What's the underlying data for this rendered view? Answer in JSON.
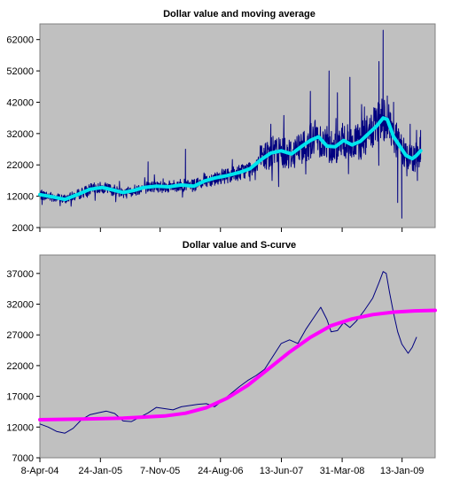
{
  "chart_data": [
    {
      "type": "line",
      "title": "Dollar value and moving average",
      "xlabel": "",
      "ylabel": "",
      "ylim": [
        2000,
        67000
      ],
      "yticks": [
        2000,
        12000,
        22000,
        32000,
        42000,
        52000,
        62000
      ],
      "xlim_days": [
        0,
        1900
      ],
      "grid": false,
      "legend": "none",
      "background": "#c0c0c0",
      "series": [
        {
          "role": "daily dollar value",
          "color": "#000080",
          "noisy": true,
          "points": [
            [
              0,
              12500
            ],
            [
              60,
              11800
            ],
            [
              120,
              11000
            ],
            [
              180,
              12500
            ],
            [
              240,
              14200
            ],
            [
              300,
              14800
            ],
            [
              350,
              14000
            ],
            [
              400,
              13200
            ],
            [
              450,
              13800
            ],
            [
              500,
              14800
            ],
            [
              560,
              15200
            ],
            [
              620,
              15000
            ],
            [
              680,
              15600
            ],
            [
              740,
              15200
            ],
            [
              790,
              16800
            ],
            [
              840,
              17800
            ],
            [
              900,
              18600
            ],
            [
              960,
              19600
            ],
            [
              1010,
              20800
            ],
            [
              1060,
              23500
            ],
            [
              1110,
              25800
            ],
            [
              1160,
              26500
            ],
            [
              1210,
              25500
            ],
            [
              1260,
              28000
            ],
            [
              1300,
              29800
            ],
            [
              1340,
              31000
            ],
            [
              1380,
              28000
            ],
            [
              1420,
              27800
            ],
            [
              1460,
              29800
            ],
            [
              1500,
              28400
            ],
            [
              1540,
              29500
            ],
            [
              1580,
              32000
            ],
            [
              1620,
              34500
            ],
            [
              1650,
              37000
            ],
            [
              1670,
              36500
            ],
            [
              1700,
              31000
            ],
            [
              1730,
              28000
            ],
            [
              1760,
              25000
            ],
            [
              1790,
              24000
            ],
            [
              1810,
              25000
            ],
            [
              1830,
              26500
            ]
          ],
          "spikes": [
            [
              520,
              23000
            ],
            [
              700,
              27000
            ],
            [
              1110,
              35000
            ],
            [
              1300,
              45500
            ],
            [
              1390,
              52000
            ],
            [
              1430,
              45000
            ],
            [
              1490,
              50000
            ],
            [
              1560,
              40500
            ],
            [
              1630,
              55000
            ],
            [
              1650,
              65000
            ],
            [
              1670,
              44000
            ],
            [
              1700,
              42000
            ],
            [
              1720,
              10000
            ],
            [
              1740,
              5000
            ],
            [
              1780,
              35000
            ],
            [
              1815,
              17000
            ],
            [
              1830,
              33000
            ]
          ]
        },
        {
          "role": "moving average",
          "color": "#00e5ee",
          "points": [
            [
              0,
              12500
            ],
            [
              60,
              11800
            ],
            [
              120,
              11000
            ],
            [
              180,
              12500
            ],
            [
              240,
              14200
            ],
            [
              300,
              14800
            ],
            [
              350,
              14000
            ],
            [
              400,
              13200
            ],
            [
              450,
              13800
            ],
            [
              500,
              14800
            ],
            [
              560,
              15200
            ],
            [
              620,
              15000
            ],
            [
              680,
              15600
            ],
            [
              740,
              15200
            ],
            [
              790,
              16800
            ],
            [
              840,
              17800
            ],
            [
              900,
              18600
            ],
            [
              960,
              19600
            ],
            [
              1010,
              20800
            ],
            [
              1060,
              23500
            ],
            [
              1110,
              25800
            ],
            [
              1160,
              26500
            ],
            [
              1210,
              25500
            ],
            [
              1260,
              28000
            ],
            [
              1300,
              29800
            ],
            [
              1340,
              31000
            ],
            [
              1380,
              28000
            ],
            [
              1420,
              27800
            ],
            [
              1460,
              29800
            ],
            [
              1500,
              28400
            ],
            [
              1540,
              29500
            ],
            [
              1580,
              32000
            ],
            [
              1620,
              34500
            ],
            [
              1650,
              37000
            ],
            [
              1670,
              36500
            ],
            [
              1700,
              31000
            ],
            [
              1730,
              28000
            ],
            [
              1760,
              25000
            ],
            [
              1790,
              24000
            ],
            [
              1810,
              25000
            ],
            [
              1830,
              26500
            ]
          ]
        }
      ]
    },
    {
      "type": "line",
      "title": "Dollar value and S-curve",
      "xlabel": "",
      "ylabel": "",
      "ylim": [
        7000,
        40000
      ],
      "yticks": [
        7000,
        12000,
        17000,
        22000,
        27000,
        32000,
        37000
      ],
      "xlim_days": [
        0,
        1900
      ],
      "xticks": [
        {
          "day": 0,
          "label": "8-Apr-04"
        },
        {
          "day": 291,
          "label": "24-Jan-05"
        },
        {
          "day": 578,
          "label": "7-Nov-05"
        },
        {
          "day": 868,
          "label": "24-Aug-06"
        },
        {
          "day": 1161,
          "label": "13-Jun-07"
        },
        {
          "day": 1453,
          "label": "31-Mar-08"
        },
        {
          "day": 1741,
          "label": "13-Jan-09"
        }
      ],
      "grid": false,
      "legend": "none",
      "background": "#c0c0c0",
      "series": [
        {
          "role": "smoothed dollar value",
          "color": "#000080",
          "points": [
            [
              0,
              12500
            ],
            [
              40,
              12000
            ],
            [
              80,
              11300
            ],
            [
              120,
              11000
            ],
            [
              160,
              11800
            ],
            [
              200,
              13200
            ],
            [
              240,
              14000
            ],
            [
              280,
              14300
            ],
            [
              320,
              14600
            ],
            [
              360,
              14200
            ],
            [
              400,
              13000
            ],
            [
              440,
              12900
            ],
            [
              480,
              13600
            ],
            [
              520,
              14300
            ],
            [
              560,
              15200
            ],
            [
              600,
              15000
            ],
            [
              640,
              14800
            ],
            [
              680,
              15300
            ],
            [
              720,
              15500
            ],
            [
              760,
              15700
            ],
            [
              800,
              15800
            ],
            [
              840,
              15300
            ],
            [
              880,
              16400
            ],
            [
              920,
              17500
            ],
            [
              960,
              18600
            ],
            [
              1000,
              19600
            ],
            [
              1040,
              20400
            ],
            [
              1080,
              21400
            ],
            [
              1120,
              23500
            ],
            [
              1160,
              25600
            ],
            [
              1200,
              26200
            ],
            [
              1240,
              25600
            ],
            [
              1280,
              28000
            ],
            [
              1320,
              30000
            ],
            [
              1350,
              31500
            ],
            [
              1380,
              29500
            ],
            [
              1400,
              27500
            ],
            [
              1430,
              27700
            ],
            [
              1460,
              29000
            ],
            [
              1490,
              28200
            ],
            [
              1520,
              29200
            ],
            [
              1560,
              31000
            ],
            [
              1600,
              33000
            ],
            [
              1630,
              35500
            ],
            [
              1650,
              37300
            ],
            [
              1665,
              37000
            ],
            [
              1680,
              34000
            ],
            [
              1700,
              30500
            ],
            [
              1720,
              27500
            ],
            [
              1740,
              25500
            ],
            [
              1770,
              24000
            ],
            [
              1790,
              25000
            ],
            [
              1810,
              26600
            ]
          ]
        },
        {
          "role": "S-curve",
          "color": "#ff00ff",
          "points": [
            [
              0,
              13200
            ],
            [
              200,
              13300
            ],
            [
              400,
              13450
            ],
            [
              600,
              13800
            ],
            [
              700,
              14250
            ],
            [
              800,
              15150
            ],
            [
              900,
              16700
            ],
            [
              1000,
              18800
            ],
            [
              1100,
              21500
            ],
            [
              1200,
              24200
            ],
            [
              1300,
              26600
            ],
            [
              1400,
              28500
            ],
            [
              1500,
              29600
            ],
            [
              1600,
              30300
            ],
            [
              1700,
              30700
            ],
            [
              1800,
              30900
            ],
            [
              1900,
              31000
            ]
          ]
        }
      ]
    }
  ]
}
